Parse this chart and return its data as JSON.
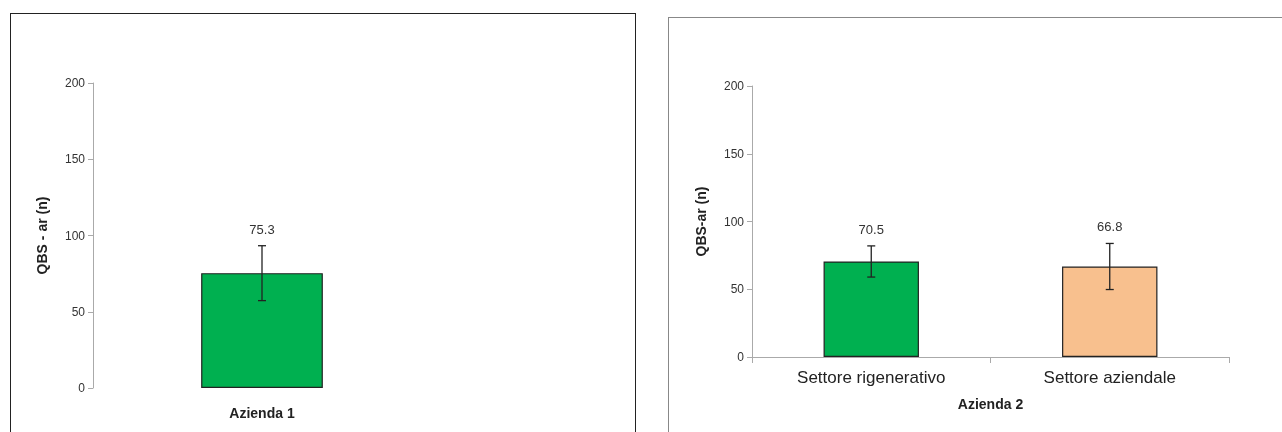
{
  "chart_data": [
    {
      "type": "bar",
      "categories": [
        null
      ],
      "values": [
        75.3
      ],
      "errors": [
        18
      ],
      "colors": [
        "#00b050"
      ],
      "xlabel": "Azienda 1",
      "ylabel": "QBS - ar (n)",
      "ylim": [
        0,
        200
      ],
      "yticks": [
        0,
        50,
        100,
        150,
        200
      ],
      "data_labels": true,
      "grid": false
    },
    {
      "type": "bar",
      "categories": [
        "Settore rigenerativo",
        "Settore aziendale"
      ],
      "values": [
        70.5,
        66.8
      ],
      "errors": [
        11.5,
        17
      ],
      "colors": [
        "#00b050",
        "#f8c08e"
      ],
      "xlabel": "Azienda 2",
      "ylabel": "QBS-ar (n)",
      "ylim": [
        0,
        200
      ],
      "yticks": [
        0,
        50,
        100,
        150,
        200
      ],
      "data_labels": true,
      "grid": false
    }
  ]
}
